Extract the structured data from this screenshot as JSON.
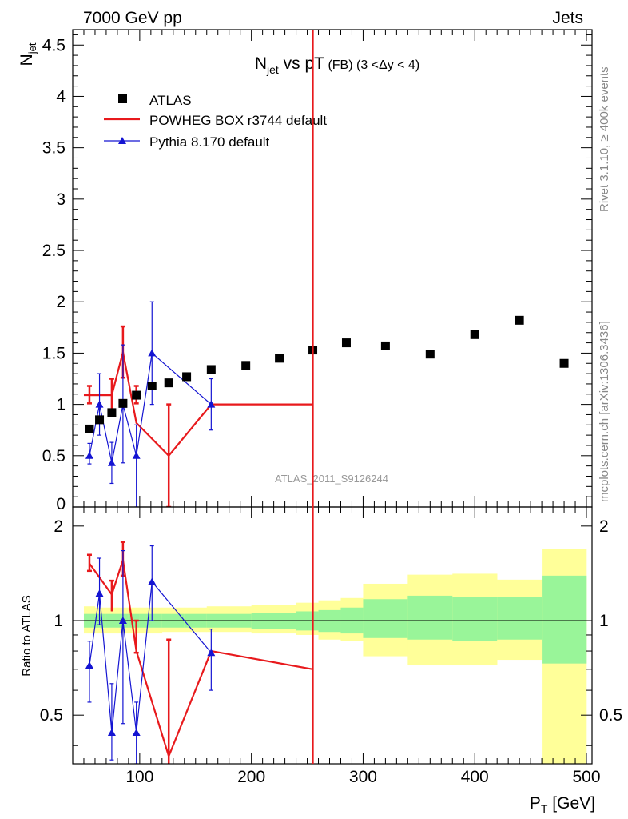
{
  "header": {
    "left": "7000 GeV pp",
    "right": "Jets"
  },
  "title": {
    "main": "N",
    "main_sub": "jet",
    "middle": " vs pT",
    "suffix": " (FB) (3 <Δy < 4)"
  },
  "side_labels": {
    "rivet": "Rivet 3.1.10, ≥ 400k events",
    "mcplots": "mcplots.cern.ch [arXiv:1306.3436]"
  },
  "watermark": "ATLAS_2011_S9126244",
  "axes": {
    "ylabel_main": "N",
    "ylabel_main_sub": "jet",
    "ylabel_ratio": "Ratio to ATLAS",
    "xlabel": "P",
    "xlabel_sub": "T",
    "xlabel_unit": " [GeV]"
  },
  "legend": {
    "atlas": "ATLAS",
    "powheg": "POWHEG BOX r3744 default",
    "pythia": "Pythia 8.170 default"
  },
  "colors": {
    "atlas": "#000000",
    "powheg": "#e8191c",
    "pythia": "#1414d2",
    "band_inner": "#99f599",
    "band_outer": "#ffff99"
  },
  "chart_data": {
    "type": "scatter",
    "x_range": [
      40,
      505
    ],
    "main_y_range": [
      0,
      4.65
    ],
    "ratio_y_range": [
      0.35,
      2.3
    ],
    "x_ticks": [
      "100",
      "200",
      "300",
      "400",
      "500"
    ],
    "main_y_ticks": [
      "0",
      "0.5",
      "1",
      "1.5",
      "2",
      "2.5",
      "3",
      "3.5",
      "4",
      "4.5"
    ],
    "ratio_y_ticks": [
      "0.5",
      "1",
      "2"
    ],
    "atlas": {
      "x": [
        55,
        64,
        75,
        85,
        97,
        111,
        126,
        142,
        164,
        195,
        225,
        255,
        285,
        320,
        360,
        400,
        440,
        480
      ],
      "y": [
        0.76,
        0.85,
        0.92,
        1.01,
        1.09,
        1.18,
        1.21,
        1.27,
        1.34,
        1.38,
        1.45,
        1.53,
        1.6,
        1.57,
        1.49,
        1.68,
        1.82,
        1.4
      ]
    },
    "ratio_bands": {
      "edges": [
        50,
        60,
        70,
        80,
        90,
        100,
        120,
        140,
        160,
        180,
        200,
        240,
        260,
        280,
        300,
        340,
        380,
        420,
        460,
        500
      ],
      "inner_lo": [
        0.95,
        0.95,
        0.95,
        0.95,
        0.95,
        0.95,
        0.95,
        0.95,
        0.95,
        0.95,
        0.94,
        0.93,
        0.92,
        0.91,
        0.88,
        0.87,
        0.86,
        0.87,
        0.73
      ],
      "inner_hi": [
        1.05,
        1.05,
        1.05,
        1.05,
        1.05,
        1.05,
        1.05,
        1.05,
        1.05,
        1.05,
        1.06,
        1.07,
        1.08,
        1.1,
        1.17,
        1.2,
        1.19,
        1.19,
        1.39
      ],
      "outer_lo": [
        0.91,
        0.91,
        0.91,
        0.91,
        0.91,
        0.91,
        0.92,
        0.92,
        0.92,
        0.92,
        0.91,
        0.9,
        0.87,
        0.86,
        0.77,
        0.72,
        0.72,
        0.75,
        0.35
      ],
      "outer_hi": [
        1.11,
        1.1,
        1.1,
        1.1,
        1.1,
        1.1,
        1.1,
        1.1,
        1.11,
        1.11,
        1.12,
        1.14,
        1.16,
        1.18,
        1.31,
        1.4,
        1.41,
        1.35,
        1.69
      ]
    },
    "series": [
      {
        "name": "POWHEG BOX r3744 default",
        "line_x": [
          55,
          75,
          85,
          97,
          126,
          164,
          255
        ],
        "line_y": [
          1.09,
          1.09,
          1.51,
          0.82,
          0.5,
          1.0,
          1.0
        ],
        "pts_x": [
          55,
          75,
          85,
          97,
          126
        ],
        "pts_y": [
          1.09,
          1.09,
          1.51,
          1.09,
          0.5
        ],
        "pts_lo": [
          1.01,
          0.93,
          1.26,
          1.01,
          0.0
        ],
        "pts_hi": [
          1.18,
          1.25,
          1.76,
          1.18,
          1.0
        ],
        "step_segments": [
          [
            50,
            75,
            1.09
          ]
        ],
        "vline_x": 255,
        "ratio_line_x": [
          55,
          75,
          85,
          97,
          126,
          164,
          255
        ],
        "ratio_line_y": [
          1.52,
          1.21,
          1.56,
          0.8,
          0.37,
          0.8,
          0.7
        ],
        "ratio_pts_x": [
          55,
          85,
          97
        ],
        "ratio_pts_y": [
          1.52,
          1.56,
          0.87
        ],
        "ratio_pts_lo": [
          1.44,
          1.39,
          0.79
        ],
        "ratio_pts_hi": [
          1.62,
          1.78,
          1.0
        ],
        "ratio_extra_bars": [
          [
            75,
            1.07,
            1.34
          ],
          [
            126,
            0.35,
            0.87
          ]
        ]
      },
      {
        "name": "Pythia 8.170 default",
        "x": [
          55,
          64,
          75,
          85,
          97,
          111,
          164
        ],
        "y": [
          0.5,
          1.0,
          0.43,
          1.0,
          0.5,
          1.5,
          1.0
        ],
        "lo": [
          0.42,
          0.7,
          0.23,
          0.43,
          0.0,
          1.0,
          0.75
        ],
        "hi": [
          0.62,
          1.3,
          0.63,
          1.58,
          0.8,
          2.0,
          1.25
        ],
        "ratio_y": [
          0.72,
          1.22,
          0.44,
          1.0,
          0.44,
          1.33,
          0.79
        ],
        "ratio_lo": [
          0.55,
          0.97,
          0.36,
          0.47,
          0.35,
          1.0,
          0.6
        ],
        "ratio_hi": [
          0.86,
          1.58,
          0.63,
          1.67,
          0.55,
          1.73,
          0.94
        ]
      }
    ]
  }
}
